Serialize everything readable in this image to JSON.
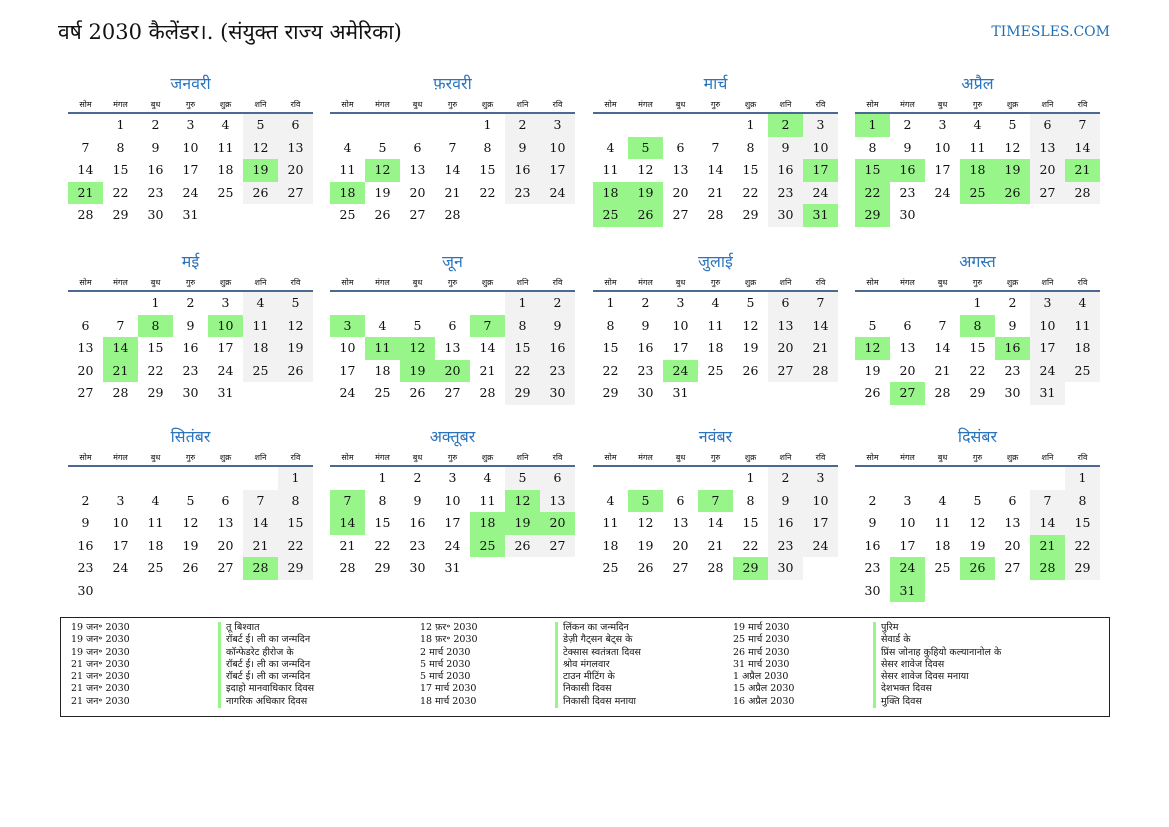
{
  "header": {
    "title": "वर्ष 2030 कैलेंडर।. (संयुक्त राज्य अमेरिका)",
    "site": "TIMESLES.COM"
  },
  "weekdays": [
    "सोम",
    "मंगल",
    "बुध",
    "गुरु",
    "शुक्र",
    "शनि",
    "रवि"
  ],
  "months": [
    {
      "name": "जनवरी",
      "offset": 1,
      "days": 31,
      "holidays": [
        19,
        21
      ]
    },
    {
      "name": "फ़रवरी",
      "offset": 4,
      "days": 28,
      "holidays": [
        12,
        18
      ]
    },
    {
      "name": "मार्च",
      "offset": 4,
      "days": 31,
      "holidays": [
        2,
        5,
        17,
        18,
        19,
        25,
        26,
        31
      ]
    },
    {
      "name": "अप्रैल",
      "offset": 0,
      "days": 30,
      "holidays": [
        1,
        15,
        16,
        18,
        19,
        21,
        22,
        25,
        26,
        29
      ]
    },
    {
      "name": "मई",
      "offset": 2,
      "days": 31,
      "holidays": [
        8,
        10,
        14,
        21
      ]
    },
    {
      "name": "जून",
      "offset": 5,
      "days": 30,
      "holidays": [
        3,
        7,
        11,
        12,
        19,
        20
      ]
    },
    {
      "name": "जुलाई",
      "offset": 0,
      "days": 31,
      "holidays": [
        24
      ]
    },
    {
      "name": "अगस्त",
      "offset": 3,
      "days": 31,
      "holidays": [
        8,
        12,
        16,
        27
      ]
    },
    {
      "name": "सितंबर",
      "offset": 6,
      "days": 30,
      "holidays": [
        28
      ]
    },
    {
      "name": "अक्तूबर",
      "offset": 1,
      "days": 31,
      "holidays": [
        7,
        12,
        14,
        18,
        19,
        20,
        25
      ]
    },
    {
      "name": "नवंबर",
      "offset": 4,
      "days": 30,
      "holidays": [
        5,
        7,
        29
      ]
    },
    {
      "name": "दिसंबर",
      "offset": 6,
      "days": 31,
      "holidays": [
        21,
        24,
        26,
        28,
        31
      ]
    }
  ],
  "legend": [
    [
      [
        "19 जन॰ 2030",
        "तू बिश्वात"
      ],
      [
        "19 जन॰ 2030",
        "रॉबर्ट ई। ली का जन्मदिन"
      ],
      [
        "19 जन॰ 2030",
        "कॉन्फेडरेट हीरोज के"
      ],
      [
        "21 जन॰ 2030",
        "रॉबर्ट ई। ली का जन्मदिन"
      ],
      [
        "21 जन॰ 2030",
        "रॉबर्ट ई। ली का जन्मदिन"
      ],
      [
        "21 जन॰ 2030",
        "इदाहो मानवाधिकार दिवस"
      ],
      [
        "21 जन॰ 2030",
        "नागरिक अधिकार दिवस"
      ]
    ],
    [
      [
        "12 फ़र॰ 2030",
        "लिंकन का जन्मदिन"
      ],
      [
        "18 फ़र॰ 2030",
        "डेज़ी गैट्सन बेट्स के"
      ],
      [
        "2 मार्च 2030",
        "टेक्सास स्वतंत्रता दिवस"
      ],
      [
        "5 मार्च 2030",
        "श्रोव मंगलवार"
      ],
      [
        "5 मार्च 2030",
        "टाउन मीटिंग के"
      ],
      [
        "17 मार्च 2030",
        "निकासी दिवस"
      ],
      [
        "18 मार्च 2030",
        "निकासी दिवस मनाया"
      ]
    ],
    [
      [
        "19 मार्च 2030",
        "पुरिम"
      ],
      [
        "25 मार्च 2030",
        "सेवार्ड के"
      ],
      [
        "26 मार्च 2030",
        "प्रिंस जोनाह कुहियो कल्यानानोल के"
      ],
      [
        "31 मार्च 2030",
        "सेसर शावेज दिवस"
      ],
      [
        "1 अप्रैल 2030",
        "सेसर शावेज दिवस मनाया"
      ],
      [
        "15 अप्रैल 2030",
        "देशभक्त दिवस"
      ],
      [
        "16 अप्रैल 2030",
        "मुक्ति दिवस"
      ]
    ]
  ]
}
